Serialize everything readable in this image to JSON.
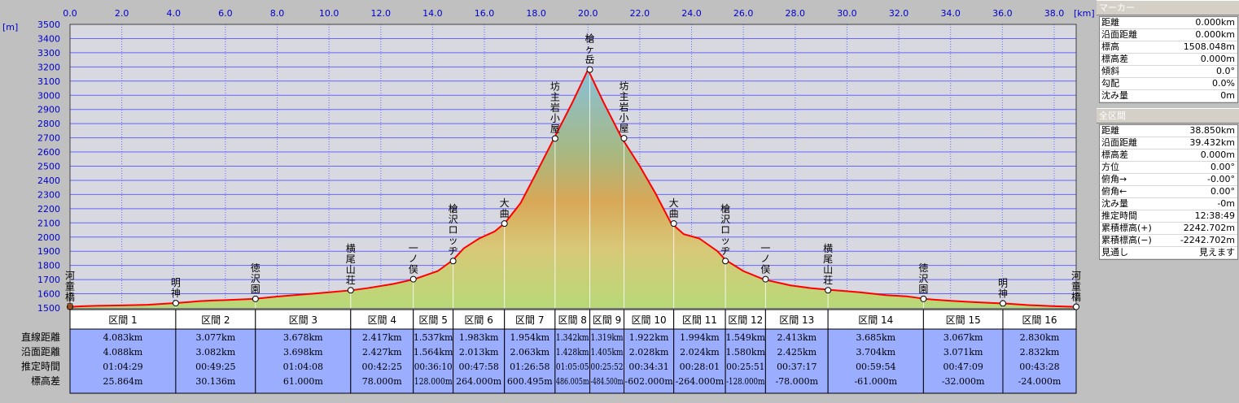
{
  "units": {
    "x": "[km]",
    "y": "[m]"
  },
  "x_ticks": [
    "0.0",
    "2.0",
    "4.0",
    "6.0",
    "8.0",
    "10.0",
    "12.0",
    "14.0",
    "16.0",
    "18.0",
    "20.0",
    "22.0",
    "24.0",
    "26.0",
    "28.0",
    "30.0",
    "32.0",
    "34.0",
    "36.0",
    "38.0"
  ],
  "y_ticks": [
    "1500",
    "1600",
    "1700",
    "1800",
    "1900",
    "2000",
    "2100",
    "2200",
    "2300",
    "2400",
    "2500",
    "2600",
    "2700",
    "2800",
    "2900",
    "3000",
    "3100",
    "3200",
    "3300",
    "3400",
    "3500"
  ],
  "chart_data": {
    "type": "area",
    "xlabel": "[km]",
    "ylabel": "[m]",
    "xlim": [
      0,
      38.85
    ],
    "ylim": [
      1500,
      3500
    ],
    "grid": true,
    "profile": {
      "x": [
        0,
        0.5,
        1.0,
        2.0,
        3.0,
        4.0,
        4.5,
        5.0,
        5.5,
        6.0,
        7.1,
        8.0,
        9.0,
        10.0,
        10.9,
        11.5,
        12.5,
        13.3,
        14.2,
        14.8,
        15.2,
        15.8,
        16.4,
        16.8,
        17.4,
        18.0,
        18.7,
        19.4,
        20.0,
        20.6,
        21.3,
        22.0,
        22.6,
        23.2,
        23.7,
        24.3,
        25.0,
        25.3,
        26.0,
        26.8,
        27.8,
        28.6,
        29.3,
        30.5,
        31.5,
        32.3,
        33.1,
        34.0,
        35.0,
        36.2,
        37.0,
        38.0,
        38.85
      ],
      "y": [
        1508,
        1512,
        1515,
        1518,
        1522,
        1534,
        1540,
        1548,
        1552,
        1555,
        1564,
        1580,
        1595,
        1610,
        1625,
        1640,
        1670,
        1703,
        1760,
        1840,
        1920,
        1990,
        2040,
        2100,
        2240,
        2450,
        2700,
        2950,
        3180,
        2950,
        2700,
        2500,
        2310,
        2100,
        2020,
        1990,
        1900,
        1840,
        1760,
        1700,
        1660,
        1640,
        1628,
        1610,
        1590,
        1582,
        1562,
        1550,
        1540,
        1530,
        1520,
        1512,
        1508
      ]
    },
    "points": [
      {
        "label": "河童橋",
        "x": 0.0,
        "y": 1508
      },
      {
        "label": "明神",
        "x": 4.083,
        "y": 1534
      },
      {
        "label": "徳沢園",
        "x": 7.16,
        "y": 1564
      },
      {
        "label": "横尾山荘",
        "x": 10.838,
        "y": 1625
      },
      {
        "label": "一ノ俣",
        "x": 13.255,
        "y": 1703
      },
      {
        "label": "槍沢ロッヂ",
        "x": 14.792,
        "y": 1831
      },
      {
        "label": "大曲",
        "x": 16.775,
        "y": 2095
      },
      {
        "label": "坊主岩小屋",
        "x": 18.729,
        "y": 2695
      },
      {
        "label": "槍ヶ岳",
        "x": 20.071,
        "y": 3181
      },
      {
        "label": "坊主岩小屋",
        "x": 21.39,
        "y": 2697
      },
      {
        "label": "大曲",
        "x": 23.312,
        "y": 2095
      },
      {
        "label": "槍沢ロッヂ",
        "x": 25.306,
        "y": 1831
      },
      {
        "label": "一ノ俣",
        "x": 26.855,
        "y": 1703
      },
      {
        "label": "横尾山荘",
        "x": 29.268,
        "y": 1625
      },
      {
        "label": "徳沢園",
        "x": 32.953,
        "y": 1564
      },
      {
        "label": "明神",
        "x": 36.02,
        "y": 1532
      },
      {
        "label": "河童橋",
        "x": 38.85,
        "y": 1508
      }
    ],
    "segments": [
      {
        "name": "区間 1",
        "dist": "4.083km",
        "surf": "4.088km",
        "time": "01:04:29",
        "diff": "25.864m"
      },
      {
        "name": "区間 2",
        "dist": "3.077km",
        "surf": "3.082km",
        "time": "00:49:25",
        "diff": "30.136m"
      },
      {
        "name": "区間 3",
        "dist": "3.678km",
        "surf": "3.698km",
        "time": "01:04:08",
        "diff": "61.000m"
      },
      {
        "name": "区間 4",
        "dist": "2.417km",
        "surf": "2.427km",
        "time": "00:42:25",
        "diff": "78.000m"
      },
      {
        "name": "区間 5",
        "dist": "1.537km",
        "surf": "1.564km",
        "time": "00:36:10",
        "diff": "128.000m"
      },
      {
        "name": "区間 6",
        "dist": "1.983km",
        "surf": "2.013km",
        "time": "00:47:58",
        "diff": "264.000m"
      },
      {
        "name": "区間 7",
        "dist": "1.954km",
        "surf": "2.063km",
        "time": "01:26:58",
        "diff": "600.495m"
      },
      {
        "name": "区間 8",
        "dist": "1.342km",
        "surf": "1.428km",
        "time": "01:05:05",
        "diff": "486.005m"
      },
      {
        "name": "区間 9",
        "dist": "1.319km",
        "surf": "1.405km",
        "time": "00:25:52",
        "diff": "-484.500m"
      },
      {
        "name": "区間 10",
        "dist": "1.922km",
        "surf": "2.028km",
        "time": "00:34:31",
        "diff": "-602.000m"
      },
      {
        "name": "区間 11",
        "dist": "1.994km",
        "surf": "2.024km",
        "time": "00:28:01",
        "diff": "-264.000m"
      },
      {
        "name": "区間 12",
        "dist": "1.549km",
        "surf": "1.580km",
        "time": "00:25:51",
        "diff": "-128.000m"
      },
      {
        "name": "区間 13",
        "dist": "2.413km",
        "surf": "2.425km",
        "time": "00:37:17",
        "diff": "-78.000m"
      },
      {
        "name": "区間 14",
        "dist": "3.685km",
        "surf": "3.704km",
        "time": "00:59:54",
        "diff": "-61.000m"
      },
      {
        "name": "区間 15",
        "dist": "3.067km",
        "surf": "3.071km",
        "time": "00:47:09",
        "diff": "-32.000m"
      },
      {
        "name": "区間 16",
        "dist": "2.830km",
        "surf": "2.832km",
        "time": "00:43:28",
        "diff": "-24.000m"
      }
    ]
  },
  "row_labels": [
    "直線距離",
    "沿面距離",
    "推定時間",
    "標高差"
  ],
  "colors": {
    "profile_line": "#ff0000",
    "grid": "#6666ff",
    "axis_text": "#0000cc",
    "plot_bg": "#d8d8e0",
    "table_bg": "#9aadff",
    "marker_bg": "#ffffff"
  },
  "marker_panel": {
    "title": "マーカー",
    "rows": [
      {
        "k": "距離",
        "v": "0.000km"
      },
      {
        "k": "沿面距離",
        "v": "0.000km"
      },
      {
        "k": "標高",
        "v": "1508.048m"
      },
      {
        "k": "標高差",
        "v": "0.000m"
      },
      {
        "k": "傾斜",
        "v": "0.0°"
      },
      {
        "k": "勾配",
        "v": "0.0%"
      },
      {
        "k": "沈み量",
        "v": "0m"
      }
    ]
  },
  "total_panel": {
    "title": "全区間",
    "rows": [
      {
        "k": "距離",
        "v": "38.850km"
      },
      {
        "k": "沿面距離",
        "v": "39.432km"
      },
      {
        "k": "標高差",
        "v": "0.000m"
      },
      {
        "k": "方位",
        "v": "0.00°"
      },
      {
        "k": "俯角→",
        "v": "-0.00°"
      },
      {
        "k": "俯角←",
        "v": "0.00°"
      },
      {
        "k": "沈み量",
        "v": "-0m"
      },
      {
        "k": "推定時間",
        "v": "12:38:49"
      },
      {
        "k": "累積標高(+)",
        "v": "2242.702m"
      },
      {
        "k": "累積標高(−)",
        "v": "-2242.702m"
      },
      {
        "k": "見通し",
        "v": "見えます"
      }
    ]
  }
}
